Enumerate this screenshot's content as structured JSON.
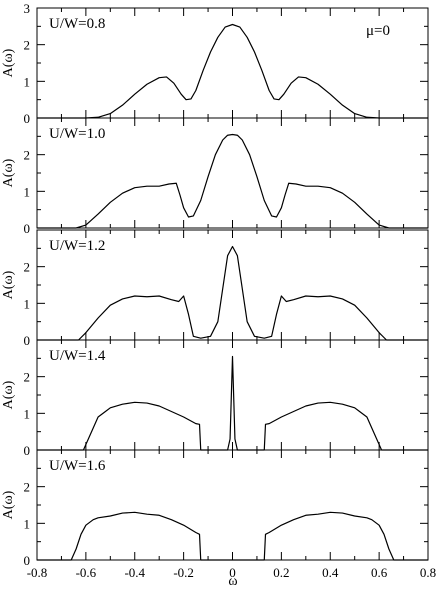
{
  "chart_data": {
    "type": "line",
    "xlabel": "ω",
    "ylabel": "A(ω)",
    "xlim": [
      -0.8,
      0.8
    ],
    "ylim": [
      0,
      3
    ],
    "x_ticks": [
      "-0.8",
      "-0.6",
      "-0.4",
      "-0.2",
      "0",
      "0.2",
      "0.4",
      "0.6",
      "0.8"
    ],
    "y_ticks_top": [
      "0",
      "1",
      "2",
      "3"
    ],
    "y_ticks": [
      "0",
      "1",
      "2"
    ],
    "annotation": "μ=0",
    "panels": [
      {
        "label": "U/W=0.8",
        "x": [
          -0.8,
          -0.6,
          -0.55,
          -0.5,
          -0.45,
          -0.4,
          -0.35,
          -0.3,
          -0.27,
          -0.24,
          -0.21,
          -0.19,
          -0.17,
          -0.15,
          -0.12,
          -0.09,
          -0.06,
          -0.03,
          0,
          0.03,
          0.06,
          0.09,
          0.12,
          0.15,
          0.17,
          0.19,
          0.21,
          0.24,
          0.27,
          0.3,
          0.35,
          0.4,
          0.45,
          0.5,
          0.55,
          0.6,
          0.8
        ],
        "y": [
          0,
          0,
          0.02,
          0.12,
          0.35,
          0.65,
          0.92,
          1.1,
          1.12,
          0.95,
          0.65,
          0.5,
          0.52,
          0.75,
          1.3,
          1.8,
          2.2,
          2.48,
          2.55,
          2.48,
          2.2,
          1.8,
          1.3,
          0.75,
          0.52,
          0.5,
          0.65,
          0.95,
          1.12,
          1.1,
          0.92,
          0.65,
          0.35,
          0.12,
          0.02,
          0,
          0
        ]
      },
      {
        "label": "U/W=1.0",
        "x": [
          -0.8,
          -0.64,
          -0.6,
          -0.55,
          -0.5,
          -0.45,
          -0.4,
          -0.35,
          -0.3,
          -0.26,
          -0.23,
          -0.215,
          -0.2,
          -0.18,
          -0.16,
          -0.13,
          -0.1,
          -0.07,
          -0.04,
          -0.02,
          0,
          0.02,
          0.04,
          0.07,
          0.1,
          0.13,
          0.16,
          0.18,
          0.2,
          0.215,
          0.23,
          0.26,
          0.3,
          0.35,
          0.4,
          0.45,
          0.5,
          0.55,
          0.6,
          0.64,
          0.8
        ],
        "y": [
          0,
          0,
          0.08,
          0.38,
          0.7,
          0.95,
          1.1,
          1.14,
          1.14,
          1.2,
          1.22,
          0.9,
          0.55,
          0.3,
          0.33,
          0.75,
          1.4,
          2.0,
          2.4,
          2.53,
          2.55,
          2.53,
          2.4,
          2.0,
          1.4,
          0.75,
          0.33,
          0.3,
          0.55,
          0.9,
          1.22,
          1.2,
          1.14,
          1.14,
          1.1,
          0.95,
          0.7,
          0.38,
          0.08,
          0,
          0
        ]
      },
      {
        "label": "U/W=1.2",
        "x": [
          -0.8,
          -0.63,
          -0.6,
          -0.55,
          -0.5,
          -0.45,
          -0.4,
          -0.35,
          -0.3,
          -0.25,
          -0.22,
          -0.2,
          -0.18,
          -0.16,
          -0.13,
          -0.09,
          -0.06,
          -0.04,
          -0.02,
          0,
          0.02,
          0.04,
          0.06,
          0.09,
          0.13,
          0.16,
          0.18,
          0.2,
          0.22,
          0.25,
          0.3,
          0.35,
          0.4,
          0.45,
          0.5,
          0.55,
          0.6,
          0.63,
          0.8
        ],
        "y": [
          0,
          0,
          0.2,
          0.6,
          0.95,
          1.12,
          1.2,
          1.18,
          1.2,
          1.1,
          1.05,
          1.2,
          0.7,
          0.1,
          0.05,
          0.1,
          0.5,
          1.4,
          2.3,
          2.55,
          2.3,
          1.4,
          0.5,
          0.1,
          0.05,
          0.1,
          0.7,
          1.2,
          1.05,
          1.1,
          1.2,
          1.18,
          1.2,
          1.12,
          0.95,
          0.6,
          0.2,
          0,
          0
        ]
      },
      {
        "label": "U/W=1.4",
        "x": [
          -0.8,
          -0.61,
          -0.59,
          -0.57,
          -0.55,
          -0.52,
          -0.5,
          -0.45,
          -0.4,
          -0.35,
          -0.3,
          -0.25,
          -0.2,
          -0.15,
          -0.135,
          -0.13,
          -0.12,
          -0.02,
          -0.01,
          0,
          0.01,
          0.02,
          0.12,
          0.13,
          0.135,
          0.15,
          0.2,
          0.25,
          0.3,
          0.35,
          0.4,
          0.45,
          0.5,
          0.52,
          0.55,
          0.57,
          0.59,
          0.61,
          0.8
        ],
        "y": [
          0,
          0,
          0.3,
          0.6,
          0.9,
          1.05,
          1.15,
          1.25,
          1.3,
          1.28,
          1.2,
          1.05,
          0.9,
          0.72,
          0.7,
          0,
          0,
          0,
          0.3,
          2.55,
          0.3,
          0,
          0,
          0,
          0.7,
          0.72,
          0.9,
          1.05,
          1.2,
          1.28,
          1.3,
          1.25,
          1.15,
          1.05,
          0.9,
          0.6,
          0.3,
          0,
          0
        ]
      },
      {
        "label": "U/W=1.6",
        "x": [
          -0.8,
          -0.66,
          -0.64,
          -0.62,
          -0.6,
          -0.57,
          -0.55,
          -0.5,
          -0.45,
          -0.4,
          -0.35,
          -0.3,
          -0.25,
          -0.2,
          -0.15,
          -0.135,
          -0.13,
          0.13,
          0.135,
          0.15,
          0.2,
          0.25,
          0.3,
          0.35,
          0.4,
          0.45,
          0.5,
          0.55,
          0.57,
          0.6,
          0.62,
          0.64,
          0.66,
          0.8
        ],
        "y": [
          0,
          0,
          0.3,
          0.7,
          0.95,
          1.1,
          1.15,
          1.2,
          1.28,
          1.3,
          1.25,
          1.22,
          1.1,
          0.95,
          0.75,
          0.7,
          0,
          0,
          0.7,
          0.75,
          0.95,
          1.1,
          1.22,
          1.25,
          1.3,
          1.28,
          1.2,
          1.15,
          1.1,
          0.95,
          0.7,
          0.3,
          0,
          0
        ]
      }
    ]
  }
}
